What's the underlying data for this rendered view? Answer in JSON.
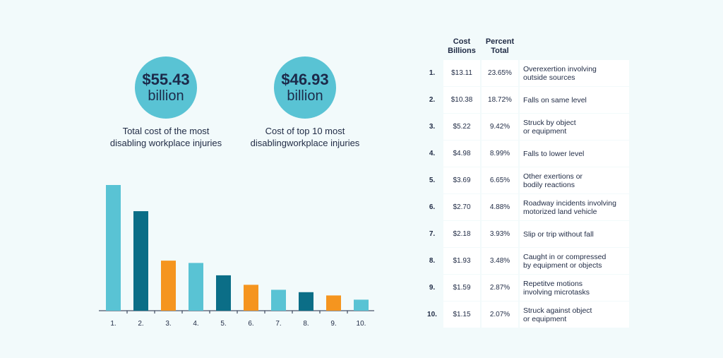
{
  "stats": [
    {
      "amount": "$55.43",
      "unit": "billion",
      "caption_lines": [
        "Total cost of the most",
        "disabling workplace injuries"
      ]
    },
    {
      "amount": "$46.93",
      "unit": "billion",
      "caption_lines": [
        "Cost of top 10 most",
        "disablingworkplace injuries"
      ]
    }
  ],
  "table": {
    "headers": {
      "cost_lines": [
        "Cost",
        "Billions"
      ],
      "percent_lines": [
        "Percent",
        "Total"
      ]
    },
    "rows": [
      {
        "rank": "1.",
        "cost": "$13.11",
        "percent": "23.65%",
        "desc_lines": [
          "Overexertion involving",
          "outside sources"
        ]
      },
      {
        "rank": "2.",
        "cost": "$10.38",
        "percent": "18.72%",
        "desc_lines": [
          "Falls on same level"
        ]
      },
      {
        "rank": "3.",
        "cost": "$5.22",
        "percent": "9.42%",
        "desc_lines": [
          "Struck by object",
          "or equipment"
        ]
      },
      {
        "rank": "4.",
        "cost": "$4.98",
        "percent": "8.99%",
        "desc_lines": [
          "Falls to lower level"
        ]
      },
      {
        "rank": "5.",
        "cost": "$3.69",
        "percent": "6.65%",
        "desc_lines": [
          "Other exertions or",
          "bodily reactions"
        ]
      },
      {
        "rank": "6.",
        "cost": "$2.70",
        "percent": "4.88%",
        "desc_lines": [
          "Roadway incidents involving",
          "motorized land vehicle"
        ]
      },
      {
        "rank": "7.",
        "cost": "$2.18",
        "percent": "3.93%",
        "desc_lines": [
          "Slip or trip without fall"
        ]
      },
      {
        "rank": "8.",
        "cost": "$1.93",
        "percent": "3.48%",
        "desc_lines": [
          "Caught in or compressed",
          "by equipment or objects"
        ]
      },
      {
        "rank": "9.",
        "cost": "$1.59",
        "percent": "2.87%",
        "desc_lines": [
          "Repetitve motions",
          "involving microtasks"
        ]
      },
      {
        "rank": "10.",
        "cost": "$1.15",
        "percent": "2.07%",
        "desc_lines": [
          "Struck against object",
          "or equipment"
        ]
      }
    ]
  },
  "colors": {
    "light_teal": "#59c3d4",
    "dark_teal": "#0b6e87",
    "orange": "#f5951f",
    "background": "#f2fafb"
  },
  "chart_data": {
    "type": "bar",
    "categories": [
      "1.",
      "2.",
      "3.",
      "4.",
      "5.",
      "6.",
      "7.",
      "8.",
      "9.",
      "10."
    ],
    "values": [
      13.11,
      10.38,
      5.22,
      4.98,
      3.69,
      2.7,
      2.18,
      1.93,
      1.59,
      1.15
    ],
    "bar_colors": [
      "#59c3d4",
      "#0b6e87",
      "#f5951f",
      "#59c3d4",
      "#0b6e87",
      "#f5951f",
      "#59c3d4",
      "#0b6e87",
      "#f5951f",
      "#59c3d4"
    ],
    "ylim": [
      0,
      13.11
    ],
    "grid": false,
    "title": "",
    "xlabel": "",
    "ylabel": ""
  }
}
